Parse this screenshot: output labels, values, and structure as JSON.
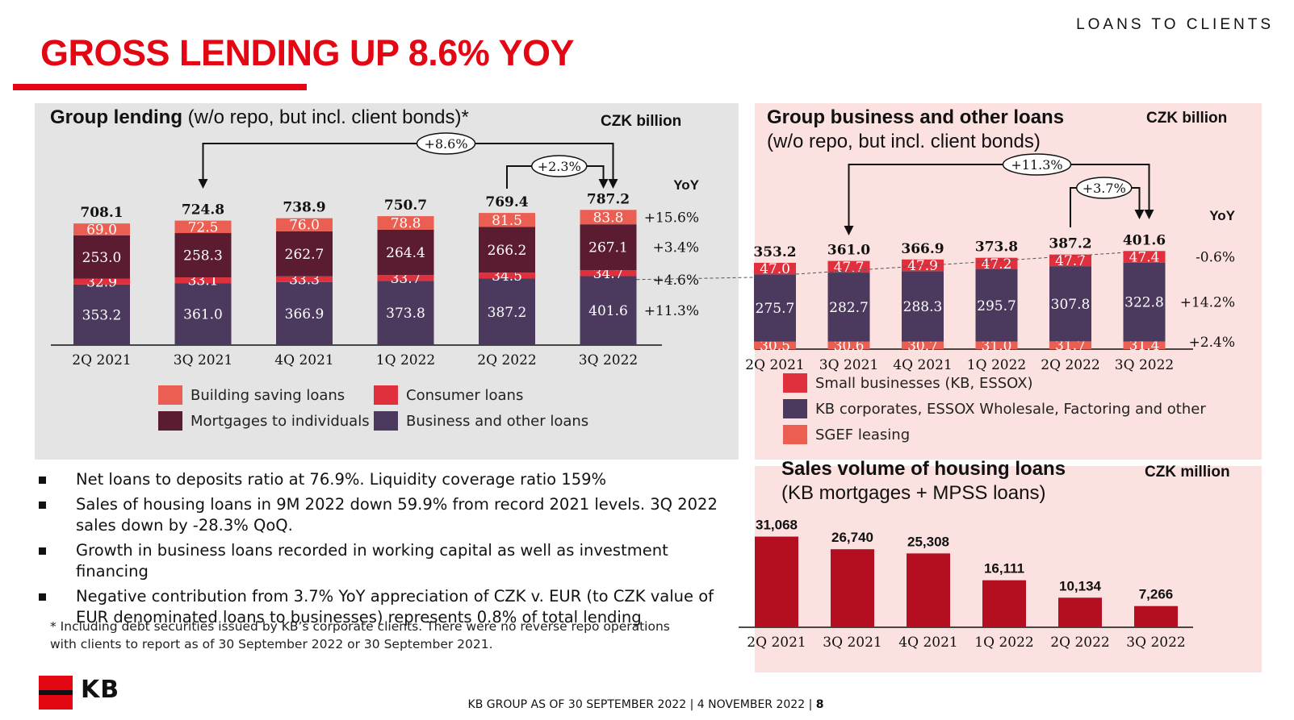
{
  "header": {
    "section": "LOANS TO CLIENTS",
    "title": "GROSS LENDING UP 8.6% YOY"
  },
  "colors": {
    "brand_red": "#e30613",
    "building_saving": "#ea5f52",
    "consumer": "#e0303e",
    "mortgages": "#5b1c32",
    "business": "#4b3a5e",
    "housing_sales": "#b30f20"
  },
  "panel_group": {
    "title_bold": "Group lending",
    "title_rest": " (w/o repo, but incl. client bonds)*",
    "unit": "CZK billion"
  },
  "panel_business": {
    "title_bold": "Group business and other loans",
    "title_line2": "(w/o repo, but incl. client bonds)",
    "unit": "CZK billion"
  },
  "panel_housing": {
    "title_bold": "Sales volume of housing loans",
    "title_line2": "(KB mortgages + MPSS loans)",
    "unit": "CZK million"
  },
  "chart_data": [
    {
      "type": "bar",
      "stacked": true,
      "categories": [
        "2Q 2021",
        "3Q 2021",
        "4Q 2021",
        "1Q 2022",
        "2Q 2022",
        "3Q 2022"
      ],
      "series": [
        {
          "name": "Business and other loans",
          "values": [
            353.2,
            361.0,
            366.9,
            373.8,
            387.2,
            401.6
          ],
          "yoy": "+11.3%"
        },
        {
          "name": "Consumer loans",
          "values": [
            32.9,
            33.1,
            33.3,
            33.7,
            34.5,
            34.7
          ],
          "yoy": "+4.6%"
        },
        {
          "name": "Mortgages to individuals",
          "values": [
            253.0,
            258.3,
            262.7,
            264.4,
            266.2,
            267.1
          ],
          "yoy": "+3.4%"
        },
        {
          "name": "Building saving loans",
          "values": [
            69.0,
            72.5,
            76.0,
            78.8,
            81.5,
            83.8
          ],
          "yoy": "+15.6%"
        }
      ],
      "totals": [
        708.1,
        724.8,
        738.9,
        750.7,
        769.4,
        787.2
      ],
      "yoy_label": "YoY",
      "annotations": [
        {
          "text": "+8.6%",
          "from": "3Q 2021",
          "to": "3Q 2022"
        },
        {
          "text": "+2.3%",
          "from": "2Q 2022",
          "to": "3Q 2022"
        }
      ],
      "legend": [
        "Building saving loans",
        "Consumer loans",
        "Mortgages to individuals",
        "Business and other loans"
      ]
    },
    {
      "type": "bar",
      "stacked": true,
      "categories": [
        "2Q 2021",
        "3Q 2021",
        "4Q 2021",
        "1Q 2022",
        "2Q 2022",
        "3Q 2022"
      ],
      "series": [
        {
          "name": "SGEF leasing",
          "values": [
            30.5,
            30.6,
            30.7,
            31.0,
            31.7,
            31.4
          ],
          "yoy": "+2.4%"
        },
        {
          "name": "KB corporates, ESSOX Wholesale, Factoring and other",
          "values": [
            275.7,
            282.7,
            288.3,
            295.7,
            307.8,
            322.8
          ],
          "yoy": "+14.2%"
        },
        {
          "name": "Small businesses (KB, ESSOX)",
          "values": [
            47.0,
            47.7,
            47.9,
            47.2,
            47.7,
            47.4
          ],
          "yoy": "-0.6%"
        }
      ],
      "totals": [
        353.2,
        361.0,
        366.9,
        373.8,
        387.2,
        401.6
      ],
      "yoy_label": "YoY",
      "annotations": [
        {
          "text": "+11.3%",
          "from": "3Q 2021",
          "to": "3Q 2022"
        },
        {
          "text": "+3.7%",
          "from": "2Q 2022",
          "to": "3Q 2022"
        }
      ],
      "legend": [
        "Small businesses (KB, ESSOX)",
        "KB corporates, ESSOX Wholesale, Factoring and other",
        "SGEF leasing"
      ]
    },
    {
      "type": "bar",
      "categories": [
        "2Q 2021",
        "3Q 2021",
        "4Q 2021",
        "1Q 2022",
        "2Q 2022",
        "3Q 2022"
      ],
      "values": [
        31068,
        26740,
        25308,
        16111,
        10134,
        7266
      ],
      "value_labels": [
        "31,068",
        "26,740",
        "25,308",
        "16,111",
        "10,134",
        "7,266"
      ]
    }
  ],
  "bullets": [
    "Net loans to deposits ratio at 76.9%. Liquidity coverage ratio 159%",
    "Sales of housing loans in 9M 2022 down 59.9% from record 2021 levels. 3Q 2022 sales down by -28.3% QoQ.",
    "Growth in business loans recorded in working capital as well as investment financing",
    "Negative contribution from 3.7% YoY appreciation of CZK v. EUR (to CZK value of EUR denominated loans to businesses) represents 0.8% of total lending"
  ],
  "footnote": "* Including debt securities issued by KB’s corporate clients. There were no reverse repo operations with clients to report as of 30 September 2022 or 30 September 2021.",
  "logo": {
    "text": "KB"
  },
  "footer": {
    "left": "KB GROUP AS OF 30 SEPTEMBER 2022",
    "date": "4 NOVEMBER 2022",
    "page": "8"
  }
}
